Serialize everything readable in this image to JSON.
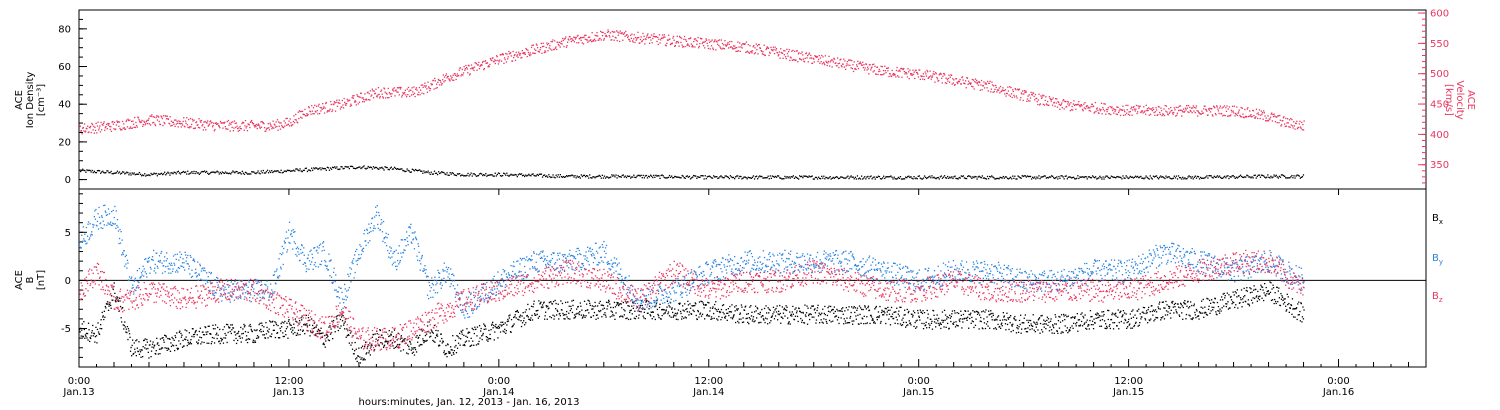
{
  "chart_data": [
    {
      "type": "scatter",
      "panel": "top",
      "ylabel_left": [
        "ACE",
        "Ion Density",
        "[cm⁻³]"
      ],
      "ylabel_right": [
        "ACE",
        "Velocity",
        "[km/s]"
      ],
      "ylim_left": [
        -5,
        90
      ],
      "yticks_left": [
        "0",
        "20",
        "40",
        "60",
        "80"
      ],
      "ylim_right": [
        310,
        605
      ],
      "yticks_right": [
        "350",
        "400",
        "450",
        "500",
        "550",
        "600"
      ],
      "colors": {
        "density": "#000000",
        "velocity": "#e8365f"
      },
      "series": [
        {
          "axis": "left",
          "x": [
            0,
            2,
            4,
            6,
            8,
            10,
            12,
            14,
            16,
            18,
            20,
            22,
            24,
            28,
            32,
            36,
            40,
            44,
            48,
            52,
            56,
            60,
            64,
            68,
            70
          ],
          "y": [
            5,
            4,
            3,
            4,
            4,
            4,
            5,
            6,
            7,
            6,
            4,
            3,
            3,
            2,
            2,
            1.5,
            1.5,
            1.5,
            1.5,
            1.5,
            1.5,
            1.5,
            1.5,
            2,
            2
          ]
        },
        {
          "axis": "right",
          "x": [
            0,
            2,
            4,
            6,
            8,
            10,
            11,
            12,
            13,
            14,
            15,
            16,
            17,
            18,
            19,
            20,
            21,
            22,
            24,
            26,
            28,
            30,
            32,
            34,
            36,
            38,
            40,
            42,
            44,
            46,
            48,
            50,
            52,
            54,
            56,
            58,
            60,
            62,
            64,
            66,
            68,
            69,
            70
          ],
          "y": [
            410,
            415,
            425,
            420,
            415,
            415,
            415,
            420,
            440,
            445,
            450,
            460,
            470,
            470,
            470,
            480,
            495,
            505,
            525,
            540,
            555,
            565,
            560,
            555,
            550,
            545,
            535,
            525,
            515,
            505,
            500,
            490,
            480,
            465,
            450,
            445,
            440,
            440,
            440,
            440,
            430,
            420,
            415
          ]
        }
      ]
    },
    {
      "type": "scatter",
      "panel": "bottom",
      "ylabel": [
        "ACE",
        "B",
        "[nT]"
      ],
      "ylim": [
        -9,
        9.5
      ],
      "yticks": [
        "-5",
        "0",
        "5"
      ],
      "legend": [
        {
          "label": "B",
          "sub": "x",
          "color": "#000000"
        },
        {
          "label": "B",
          "sub": "y",
          "color": "#2b84e0"
        },
        {
          "label": "B",
          "sub": "z",
          "color": "#e8365f"
        }
      ],
      "series": [
        {
          "name": "Bx",
          "color": "#000000",
          "x": [
            0,
            1,
            2,
            3,
            4,
            6,
            8,
            10,
            11,
            12,
            13,
            14,
            15,
            16,
            17,
            18,
            19,
            20,
            21,
            22,
            24,
            26,
            28,
            30,
            32,
            34,
            36,
            38,
            40,
            42,
            44,
            46,
            48,
            50,
            52,
            54,
            56,
            58,
            60,
            62,
            64,
            66,
            68,
            70
          ],
          "y": [
            -5,
            -5.5,
            -1,
            -7,
            -7,
            -6,
            -5.5,
            -5.5,
            -5,
            -5,
            -4.5,
            -6,
            -4,
            -8,
            -6,
            -6,
            -7,
            -5,
            -7,
            -6,
            -5,
            -3,
            -3,
            -3,
            -3,
            -3,
            -3,
            -3.5,
            -3.5,
            -3.5,
            -3.5,
            -3.5,
            -4,
            -4,
            -4,
            -4.5,
            -4.5,
            -4,
            -4,
            -3,
            -3,
            -2,
            -1,
            -3.5
          ]
        },
        {
          "name": "By",
          "color": "#2b84e0",
          "x": [
            0,
            1,
            2,
            3,
            4,
            6,
            8,
            10,
            11,
            12,
            13,
            14,
            15,
            16,
            17,
            18,
            19,
            20,
            21,
            22,
            24,
            26,
            28,
            30,
            32,
            34,
            36,
            38,
            40,
            42,
            44,
            46,
            48,
            50,
            52,
            54,
            56,
            58,
            60,
            62,
            64,
            66,
            68,
            70
          ],
          "y": [
            4,
            6.5,
            7,
            -1,
            2,
            2,
            -1,
            -1,
            -1,
            5,
            2,
            3,
            -2,
            3,
            7,
            2,
            5,
            -1,
            1,
            -3,
            0,
            2,
            2,
            3,
            -2,
            -1,
            1,
            2,
            2,
            2,
            2,
            1,
            0,
            1,
            1,
            0,
            0,
            1,
            1,
            3,
            2,
            1,
            2,
            0
          ]
        },
        {
          "name": "Bz",
          "color": "#e8365f",
          "x": [
            0,
            1,
            2,
            3,
            4,
            6,
            8,
            10,
            11,
            12,
            13,
            14,
            15,
            16,
            17,
            18,
            19,
            20,
            21,
            22,
            24,
            26,
            28,
            30,
            32,
            34,
            36,
            38,
            40,
            42,
            44,
            46,
            48,
            50,
            52,
            54,
            56,
            58,
            60,
            62,
            64,
            66,
            68,
            70
          ],
          "y": [
            -1,
            1,
            -2,
            -2,
            -1,
            -2,
            -1,
            -1,
            -2,
            -3,
            -4,
            -5,
            -3,
            -6,
            -6,
            -6,
            -5,
            -4,
            -3,
            -2,
            -1,
            0,
            1,
            0,
            -2,
            1,
            -1,
            0,
            0,
            1,
            0,
            -1,
            -1,
            0,
            -1,
            -1,
            -1,
            -1,
            -1,
            0,
            1,
            2,
            2,
            -1
          ]
        }
      ]
    }
  ],
  "x_axis": {
    "range_hours": [
      0,
      77
    ],
    "ticks": [
      {
        "h": 0,
        "time": "0:00",
        "date": "Jan.13"
      },
      {
        "h": 12,
        "time": "12:00",
        "date": "Jan.13"
      },
      {
        "h": 24,
        "time": "0:00",
        "date": "Jan.14"
      },
      {
        "h": 36,
        "time": "12:00",
        "date": "Jan.14"
      },
      {
        "h": 48,
        "time": "0:00",
        "date": "Jan.15"
      },
      {
        "h": 60,
        "time": "12:00",
        "date": "Jan.15"
      },
      {
        "h": 72,
        "time": "0:00",
        "date": "Jan.16"
      }
    ],
    "xlabel": "hours:minutes, Jan. 12, 2013 - Jan. 16, 2013"
  }
}
